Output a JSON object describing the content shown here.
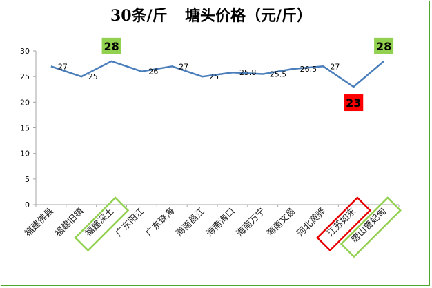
{
  "chart_data": {
    "type": "line",
    "title_left": "30条/斤",
    "title_right": "塘头价格（元/斤）",
    "categories": [
      "福建佛县",
      "福建旧镇",
      "福建深土",
      "广东阳江",
      "广东珠海",
      "海南昌江",
      "海南海口",
      "海南万宁",
      "海南文昌",
      "河北黄骅",
      "江苏如东",
      "唐山曹妃甸"
    ],
    "values": [
      27,
      25,
      28,
      26,
      27,
      25,
      25.8,
      25.5,
      26.5,
      27,
      23,
      28
    ],
    "data_labels": [
      "27",
      "25",
      "28",
      "26",
      "27",
      "25",
      "25.8",
      "25.5",
      "26.5",
      "27",
      "23",
      "28"
    ],
    "highlights": [
      {
        "index": 2,
        "text": "28",
        "box_color": "#92d050",
        "text_color": "#000000"
      },
      {
        "index": 10,
        "text": "23",
        "box_color": "#ff0000",
        "text_color": "#000000"
      },
      {
        "index": 11,
        "text": "28",
        "box_color": "#92d050",
        "text_color": "#000000"
      }
    ],
    "highlighted_categories": [
      {
        "index": 2,
        "color": "#92d050"
      },
      {
        "index": 10,
        "color": "#e60000"
      },
      {
        "index": 11,
        "color": "#92d050"
      }
    ],
    "ylim": [
      0,
      30
    ],
    "yticks": [
      0,
      5,
      10,
      15,
      20,
      25,
      30
    ],
    "line_color": "#4a7ebb",
    "grid": false,
    "legend": "none"
  }
}
